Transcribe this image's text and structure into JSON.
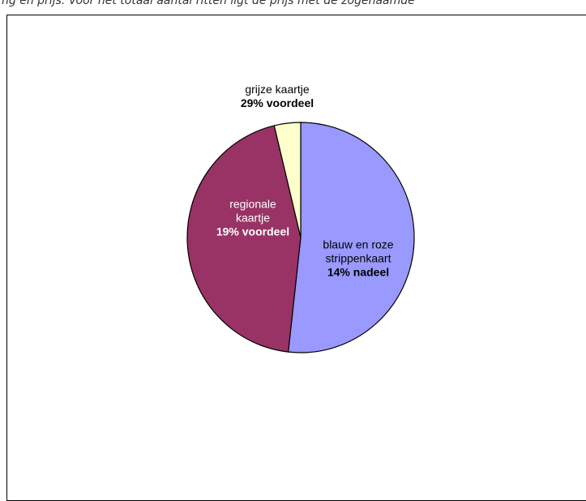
{
  "caption": "ng en prijs. Voor het totaal aantal ritten ligt de prijs met de zogenaamde",
  "colors": {
    "outline": "#000000",
    "label_dark": "#000000",
    "label_light": "#ffffff"
  },
  "chart_data": {
    "type": "pie",
    "title": "",
    "start_angle_deg": 0,
    "direction": "clockwise",
    "slices": [
      {
        "name_lines": [
          "blauw en roze",
          "strippenkaart"
        ],
        "value_label": "14% nadeel",
        "share": 0.5175,
        "color": "#9999ff",
        "label_color": "#000000"
      },
      {
        "name_lines": [
          "regionale",
          "kaartje"
        ],
        "value_label": "19% voordeel",
        "share": 0.445,
        "color": "#993366",
        "label_color": "#ffffff"
      },
      {
        "name_lines": [
          "grijze kaartje"
        ],
        "value_label": "29% voordeel",
        "share": 0.0375,
        "color": "#ffffcc",
        "label_color": "#000000"
      }
    ]
  }
}
